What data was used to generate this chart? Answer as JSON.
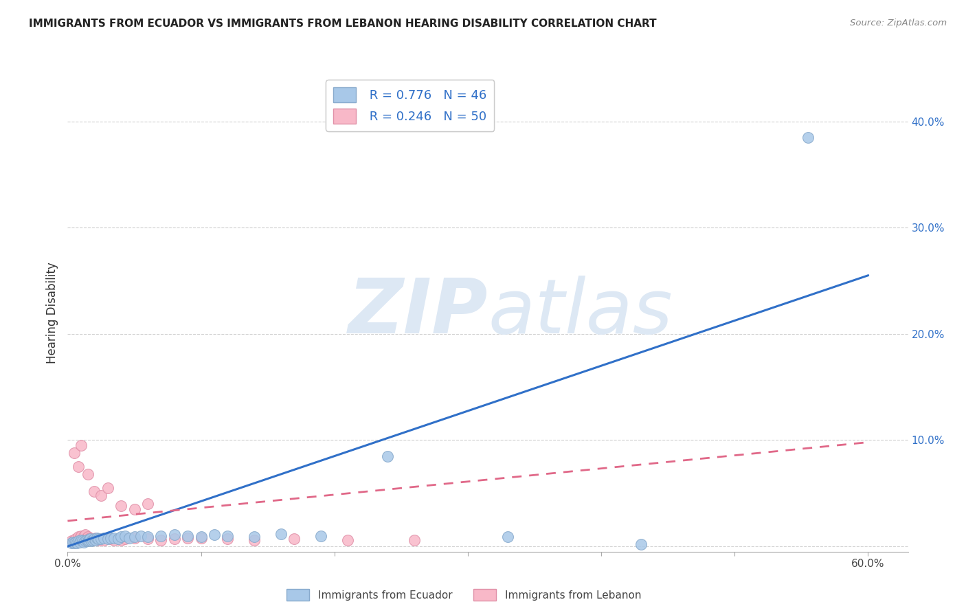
{
  "title": "IMMIGRANTS FROM ECUADOR VS IMMIGRANTS FROM LEBANON HEARING DISABILITY CORRELATION CHART",
  "source": "Source: ZipAtlas.com",
  "ylabel": "Hearing Disability",
  "xlim": [
    0.0,
    0.63
  ],
  "ylim": [
    -0.005,
    0.445
  ],
  "ecuador_R": 0.776,
  "ecuador_N": 46,
  "lebanon_R": 0.246,
  "lebanon_N": 50,
  "ecuador_color": "#a8c8e8",
  "ecuador_edge_color": "#88aacc",
  "lebanon_color": "#f8b8c8",
  "lebanon_edge_color": "#e090a8",
  "ecuador_line_color": "#3070c8",
  "lebanon_line_color": "#e06888",
  "background_color": "#ffffff",
  "grid_color": "#cccccc",
  "watermark_zip": "ZIP",
  "watermark_atlas": "atlas",
  "watermark_color": "#dde8f4",
  "ecuador_line_x": [
    0.0,
    0.6
  ],
  "ecuador_line_y": [
    0.0,
    0.255
  ],
  "lebanon_line_x": [
    0.0,
    0.6
  ],
  "lebanon_line_y": [
    0.024,
    0.098
  ],
  "ec_x": [
    0.003,
    0.004,
    0.005,
    0.006,
    0.007,
    0.008,
    0.009,
    0.01,
    0.011,
    0.012,
    0.013,
    0.014,
    0.015,
    0.016,
    0.017,
    0.018,
    0.019,
    0.02,
    0.021,
    0.022,
    0.023,
    0.025,
    0.027,
    0.03,
    0.032,
    0.035,
    0.038,
    0.04,
    0.043,
    0.046,
    0.05,
    0.055,
    0.06,
    0.07,
    0.08,
    0.09,
    0.1,
    0.11,
    0.12,
    0.14,
    0.16,
    0.19,
    0.24,
    0.33,
    0.43,
    0.555
  ],
  "ec_y": [
    0.003,
    0.004,
    0.003,
    0.004,
    0.003,
    0.005,
    0.004,
    0.006,
    0.005,
    0.004,
    0.005,
    0.006,
    0.005,
    0.006,
    0.007,
    0.005,
    0.006,
    0.007,
    0.006,
    0.008,
    0.007,
    0.007,
    0.008,
    0.007,
    0.008,
    0.008,
    0.007,
    0.009,
    0.01,
    0.008,
    0.009,
    0.01,
    0.009,
    0.01,
    0.011,
    0.01,
    0.009,
    0.011,
    0.01,
    0.009,
    0.012,
    0.01,
    0.085,
    0.009,
    0.002,
    0.385
  ],
  "lb_x": [
    0.003,
    0.004,
    0.005,
    0.006,
    0.007,
    0.008,
    0.009,
    0.01,
    0.011,
    0.012,
    0.013,
    0.014,
    0.015,
    0.016,
    0.017,
    0.018,
    0.019,
    0.02,
    0.021,
    0.022,
    0.023,
    0.025,
    0.027,
    0.03,
    0.032,
    0.035,
    0.038,
    0.04,
    0.043,
    0.05,
    0.06,
    0.07,
    0.08,
    0.09,
    0.1,
    0.12,
    0.14,
    0.17,
    0.21,
    0.26,
    0.005,
    0.008,
    0.01,
    0.015,
    0.02,
    0.025,
    0.03,
    0.04,
    0.05,
    0.06
  ],
  "lb_y": [
    0.005,
    0.004,
    0.006,
    0.007,
    0.005,
    0.009,
    0.008,
    0.01,
    0.007,
    0.01,
    0.011,
    0.008,
    0.009,
    0.007,
    0.008,
    0.006,
    0.007,
    0.006,
    0.008,
    0.007,
    0.006,
    0.007,
    0.006,
    0.008,
    0.007,
    0.006,
    0.007,
    0.006,
    0.007,
    0.008,
    0.007,
    0.006,
    0.007,
    0.008,
    0.008,
    0.007,
    0.006,
    0.007,
    0.006,
    0.006,
    0.088,
    0.075,
    0.095,
    0.068,
    0.052,
    0.048,
    0.055,
    0.038,
    0.035,
    0.04
  ]
}
